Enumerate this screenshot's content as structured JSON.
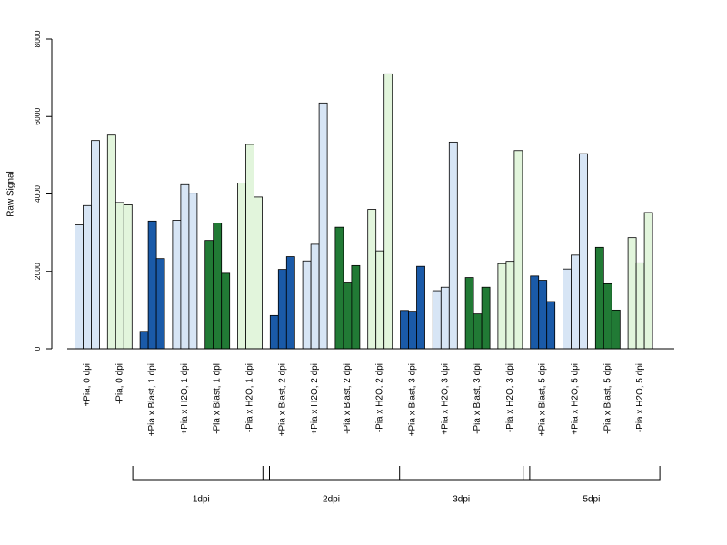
{
  "chart_data": {
    "type": "bar",
    "ylabel": "Raw Signal",
    "xlabel": "",
    "title": "",
    "ylim": [
      0,
      8000
    ],
    "yticks": [
      0,
      2000,
      4000,
      6000,
      8000
    ],
    "grid": false,
    "categories": [
      "+Pia, 0 dpi",
      "-Pia, 0 dpi",
      "+Pia x Blast, 1 dpi",
      "+Pia x H2O, 1 dpi",
      "-Pia x Blast, 1 dpi",
      "-Pia x H2O, 1 dpi",
      "+Pia x Blast, 2 dpi",
      "+Pia x H2O, 2 dpi",
      "-Pia x Blast, 2 dpi",
      "-Pia x H2O, 2 dpi",
      "+Pia x Blast, 3 dpi",
      "+Pia x H2O, 3 dpi",
      "-Pia x Blast, 3 dpi",
      "-Pia x H2O, 3 dpi",
      "+Pia x Blast, 5 dpi",
      "+Pia x H2O, 5 dpi",
      "-Pia x Blast, 5 dpi",
      "-Pia x H2O, 5 dpi"
    ],
    "colors": [
      "#d7e5f5",
      "#e2f5dc",
      "#1a5aa8",
      "#d7e5f5",
      "#217a35",
      "#e2f5dc",
      "#1a5aa8",
      "#d7e5f5",
      "#217a35",
      "#e2f5dc",
      "#1a5aa8",
      "#d7e5f5",
      "#217a35",
      "#e2f5dc",
      "#1a5aa8",
      "#d7e5f5",
      "#217a35",
      "#e2f5dc"
    ],
    "values": [
      [
        3200,
        3700,
        5380
      ],
      [
        5520,
        3780,
        3720
      ],
      [
        450,
        3300,
        2330
      ],
      [
        3320,
        4240,
        4020
      ],
      [
        2800,
        3250,
        1950
      ],
      [
        4280,
        5280,
        3920
      ],
      [
        860,
        2050,
        2380
      ],
      [
        2270,
        2700,
        6350
      ],
      [
        3140,
        1700,
        2150
      ],
      [
        3600,
        2530,
        7100
      ],
      [
        990,
        970,
        2130
      ],
      [
        1500,
        1590,
        5340
      ],
      [
        1840,
        900,
        1590
      ],
      [
        2200,
        2260,
        5120
      ],
      [
        1880,
        1770,
        1220
      ],
      [
        2060,
        2420,
        5040
      ],
      [
        2620,
        1680,
        1000
      ],
      [
        2870,
        2220,
        3520
      ]
    ],
    "groups": [
      {
        "label": "1dpi",
        "start": 2,
        "end": 5
      },
      {
        "label": "2dpi",
        "start": 6,
        "end": 9
      },
      {
        "label": "3dpi",
        "start": 10,
        "end": 13
      },
      {
        "label": "5dpi",
        "start": 14,
        "end": 17
      }
    ]
  }
}
